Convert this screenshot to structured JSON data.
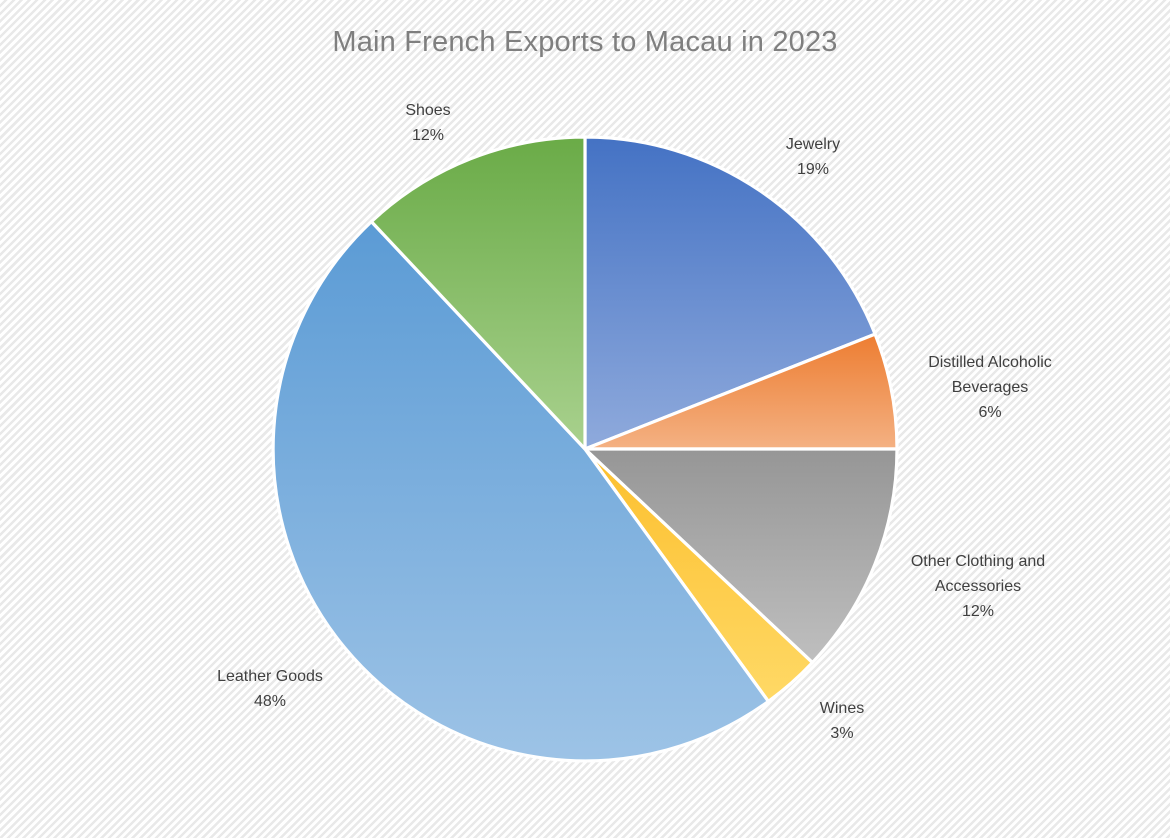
{
  "chart_data": {
    "type": "pie",
    "title": "Main French Exports to Macau in 2023",
    "categories": [
      "Jewelry",
      "Distilled Alcoholic Beverages",
      "Other Clothing and Accessories",
      "Wines",
      "Leather Goods",
      "Shoes"
    ],
    "values": [
      19,
      6,
      12,
      3,
      48,
      12
    ],
    "value_labels": [
      "19%",
      "6%",
      "12%",
      "3%",
      "48%",
      "12%"
    ],
    "unit": "percent",
    "start_angle_deg": 0,
    "direction": "clockwise",
    "labels_position": "outside-end",
    "legend": "none",
    "slice_colors": [
      {
        "top": "#4472c4",
        "bottom": "#8faadc"
      },
      {
        "top": "#ed7d31",
        "bottom": "#f4b183"
      },
      {
        "top": "#969696",
        "bottom": "#bfbfbf"
      },
      {
        "top": "#fcbf2d",
        "bottom": "#ffd966"
      },
      {
        "top": "#5b9bd5",
        "bottom": "#9dc3e6"
      },
      {
        "top": "#6aab47",
        "bottom": "#a9d18e"
      }
    ],
    "separator_color": "#ffffff",
    "title_color": "#7f7f7f",
    "label_color": "#404040",
    "background_style": "light diagonal hatch"
  }
}
